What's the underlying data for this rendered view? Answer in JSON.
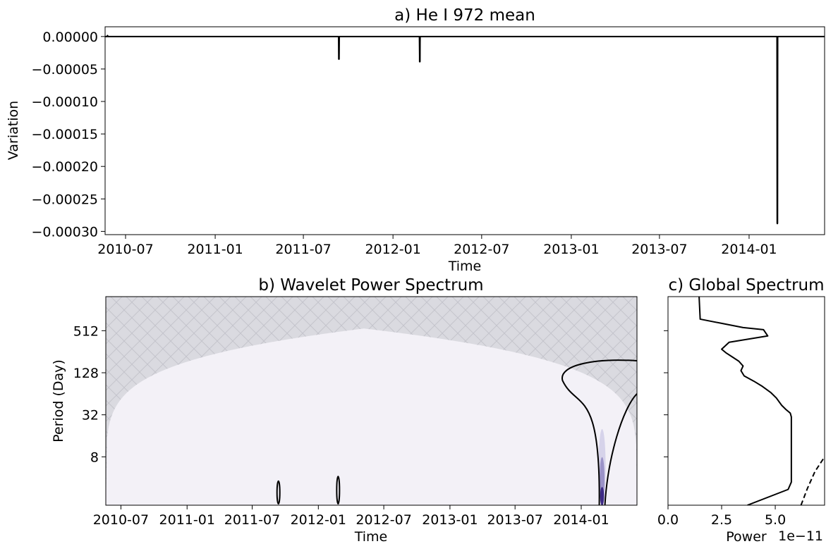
{
  "chart_data": [
    {
      "type": "line",
      "title": "a) He I 972 mean",
      "xlabel": "Time",
      "ylabel": "Variation",
      "xlim": [
        "2010-05-20",
        "2014-06-05"
      ],
      "ylim": [
        -0.000305,
        1.5e-05
      ],
      "xticks": [
        "2010-07",
        "2011-01",
        "2011-07",
        "2012-01",
        "2012-07",
        "2013-01",
        "2013-07",
        "2014-01"
      ],
      "yticks": [
        0.0,
        -5e-05,
        -0.0001,
        -0.00015,
        -0.0002,
        -0.00025,
        -0.0003
      ],
      "ytick_labels": [
        "0.00000",
        "−0.00005",
        "−0.00010",
        "−0.00015",
        "−0.00020",
        "−0.00025",
        "−0.00030"
      ],
      "baseline": 0.0,
      "spikes": [
        {
          "x": "2010-05-25",
          "y": 1.5e-06
        },
        {
          "x": "2011-09-12",
          "y": -3.5e-05
        },
        {
          "x": "2012-02-25",
          "y": -3.9e-05
        },
        {
          "x": "2014-02-28",
          "y": -0.000288
        }
      ]
    },
    {
      "type": "heatmap",
      "title": "b) Wavelet Power Spectrum",
      "xlabel": "Time",
      "ylabel": "Period (Day)",
      "xlim": [
        "2010-05-20",
        "2014-06-05"
      ],
      "ylim_log2": [
        0.7,
        10.62
      ],
      "xticks": [
        "2010-07",
        "2011-01",
        "2011-07",
        "2012-01",
        "2012-07",
        "2013-01",
        "2013-07",
        "2014-01"
      ],
      "yticks": [
        8,
        32,
        128,
        512
      ],
      "ytick_labels": [
        "8",
        "32",
        "128",
        "512"
      ],
      "cone_of_influence_peak": {
        "x": "2012-05-07",
        "period_days": 550
      },
      "power_features": [
        {
          "x": "2011-09-12",
          "period_range_days": [
            1.7,
            3.6
          ]
        },
        {
          "x": "2012-02-25",
          "period_range_days": [
            1.7,
            4.2
          ]
        },
        {
          "x": "2014-02-28",
          "period_range_days": [
            1.7,
            20
          ]
        }
      ],
      "significance_contour": {
        "x_range": [
          "2013-11-10",
          "2014-06-05"
        ],
        "period_peak_days": 190
      },
      "colors": {
        "background": "#f3f1f7",
        "coi_fill": "#dadae0",
        "hatch": "#c4c4cc",
        "power_peak": "#3d2a85"
      }
    },
    {
      "type": "line",
      "title": "c) Global Spectrum",
      "xlabel": "Power",
      "offset_text": "1e−11",
      "xlim": [
        0,
        7.3
      ],
      "xticks": [
        0.0,
        2.5,
        5.0
      ],
      "xtick_labels": [
        "0.0",
        "2.5",
        "5.0"
      ],
      "series": [
        {
          "style": "solid",
          "points": [
            [
              3.7,
              0.7
            ],
            [
              5.6,
              1.45
            ],
            [
              5.75,
              1.8
            ],
            [
              5.75,
              2.5
            ],
            [
              5.75,
              3.3
            ],
            [
              5.75,
              4.3
            ],
            [
              5.75,
              4.9
            ],
            [
              5.7,
              5.08
            ],
            [
              5.5,
              5.25
            ],
            [
              5.3,
              5.45
            ],
            [
              5.05,
              5.8
            ],
            [
              4.8,
              6.05
            ],
            [
              4.4,
              6.35
            ],
            [
              4.0,
              6.6
            ],
            [
              3.55,
              6.85
            ],
            [
              3.4,
              7.1
            ],
            [
              3.5,
              7.32
            ],
            [
              3.3,
              7.55
            ],
            [
              3.0,
              7.75
            ],
            [
              2.7,
              7.95
            ],
            [
              2.5,
              8.12
            ],
            [
              2.85,
              8.45
            ],
            [
              4.65,
              8.75
            ],
            [
              4.45,
              9.05
            ],
            [
              3.5,
              9.15
            ],
            [
              2.5,
              9.35
            ],
            [
              1.5,
              9.55
            ],
            [
              1.45,
              10.62
            ]
          ]
        },
        {
          "style": "dashed",
          "points": [
            [
              6.2,
              0.7
            ],
            [
              6.5,
              1.5
            ],
            [
              6.85,
              2.3
            ],
            [
              7.3,
              3.0
            ]
          ]
        }
      ]
    }
  ]
}
